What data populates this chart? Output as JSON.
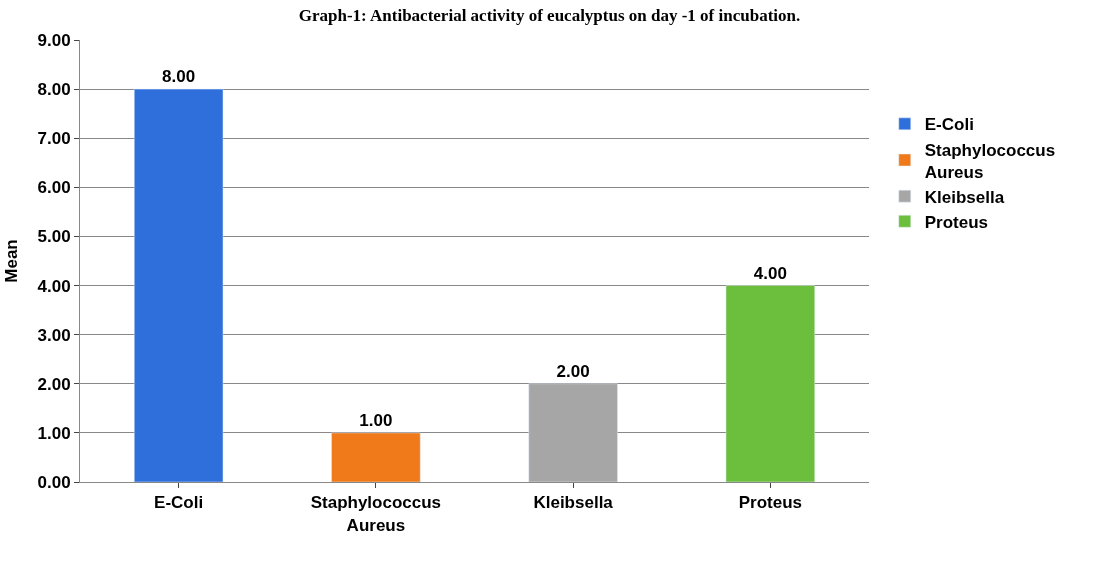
{
  "chart_data": {
    "type": "bar",
    "title": "Graph-1: Antibacterial activity of eucalyptus on day -1 of incubation.",
    "ylabel": "Mean",
    "categories": [
      "E-Coli",
      "Staphylococcus Aureus",
      "Kleibsella",
      "Proteus"
    ],
    "series": [
      {
        "name": "E-Coli",
        "color": "#2f6fdc",
        "values": [
          8.0,
          null,
          null,
          null
        ],
        "value_labels": [
          "8.00",
          null,
          null,
          null
        ]
      },
      {
        "name": "Staphylococcus Aureus",
        "color": "#f07a1a",
        "values": [
          null,
          1.0,
          null,
          null
        ],
        "value_labels": [
          null,
          "1.00",
          null,
          null
        ]
      },
      {
        "name": "Kleibsella",
        "color": "#a6a6a6",
        "values": [
          null,
          null,
          2.0,
          null
        ],
        "value_labels": [
          null,
          null,
          "2.00",
          null
        ]
      },
      {
        "name": "Proteus",
        "color": "#6cbf3c",
        "values": [
          null,
          null,
          null,
          4.0
        ],
        "value_labels": [
          null,
          null,
          null,
          "4.00"
        ]
      }
    ],
    "ylim": [
      0,
      9
    ],
    "yticks": [
      {
        "value": 0,
        "label": "0.00"
      },
      {
        "value": 1,
        "label": "1.00"
      },
      {
        "value": 2,
        "label": "2.00"
      },
      {
        "value": 3,
        "label": "3.00"
      },
      {
        "value": 4,
        "label": "4.00"
      },
      {
        "value": 5,
        "label": "5.00"
      },
      {
        "value": 6,
        "label": "6.00"
      },
      {
        "value": 7,
        "label": "7.00"
      },
      {
        "value": 8,
        "label": "8.00"
      },
      {
        "value": 9,
        "label": "9.00"
      }
    ],
    "grid": "y",
    "legend": "right"
  }
}
